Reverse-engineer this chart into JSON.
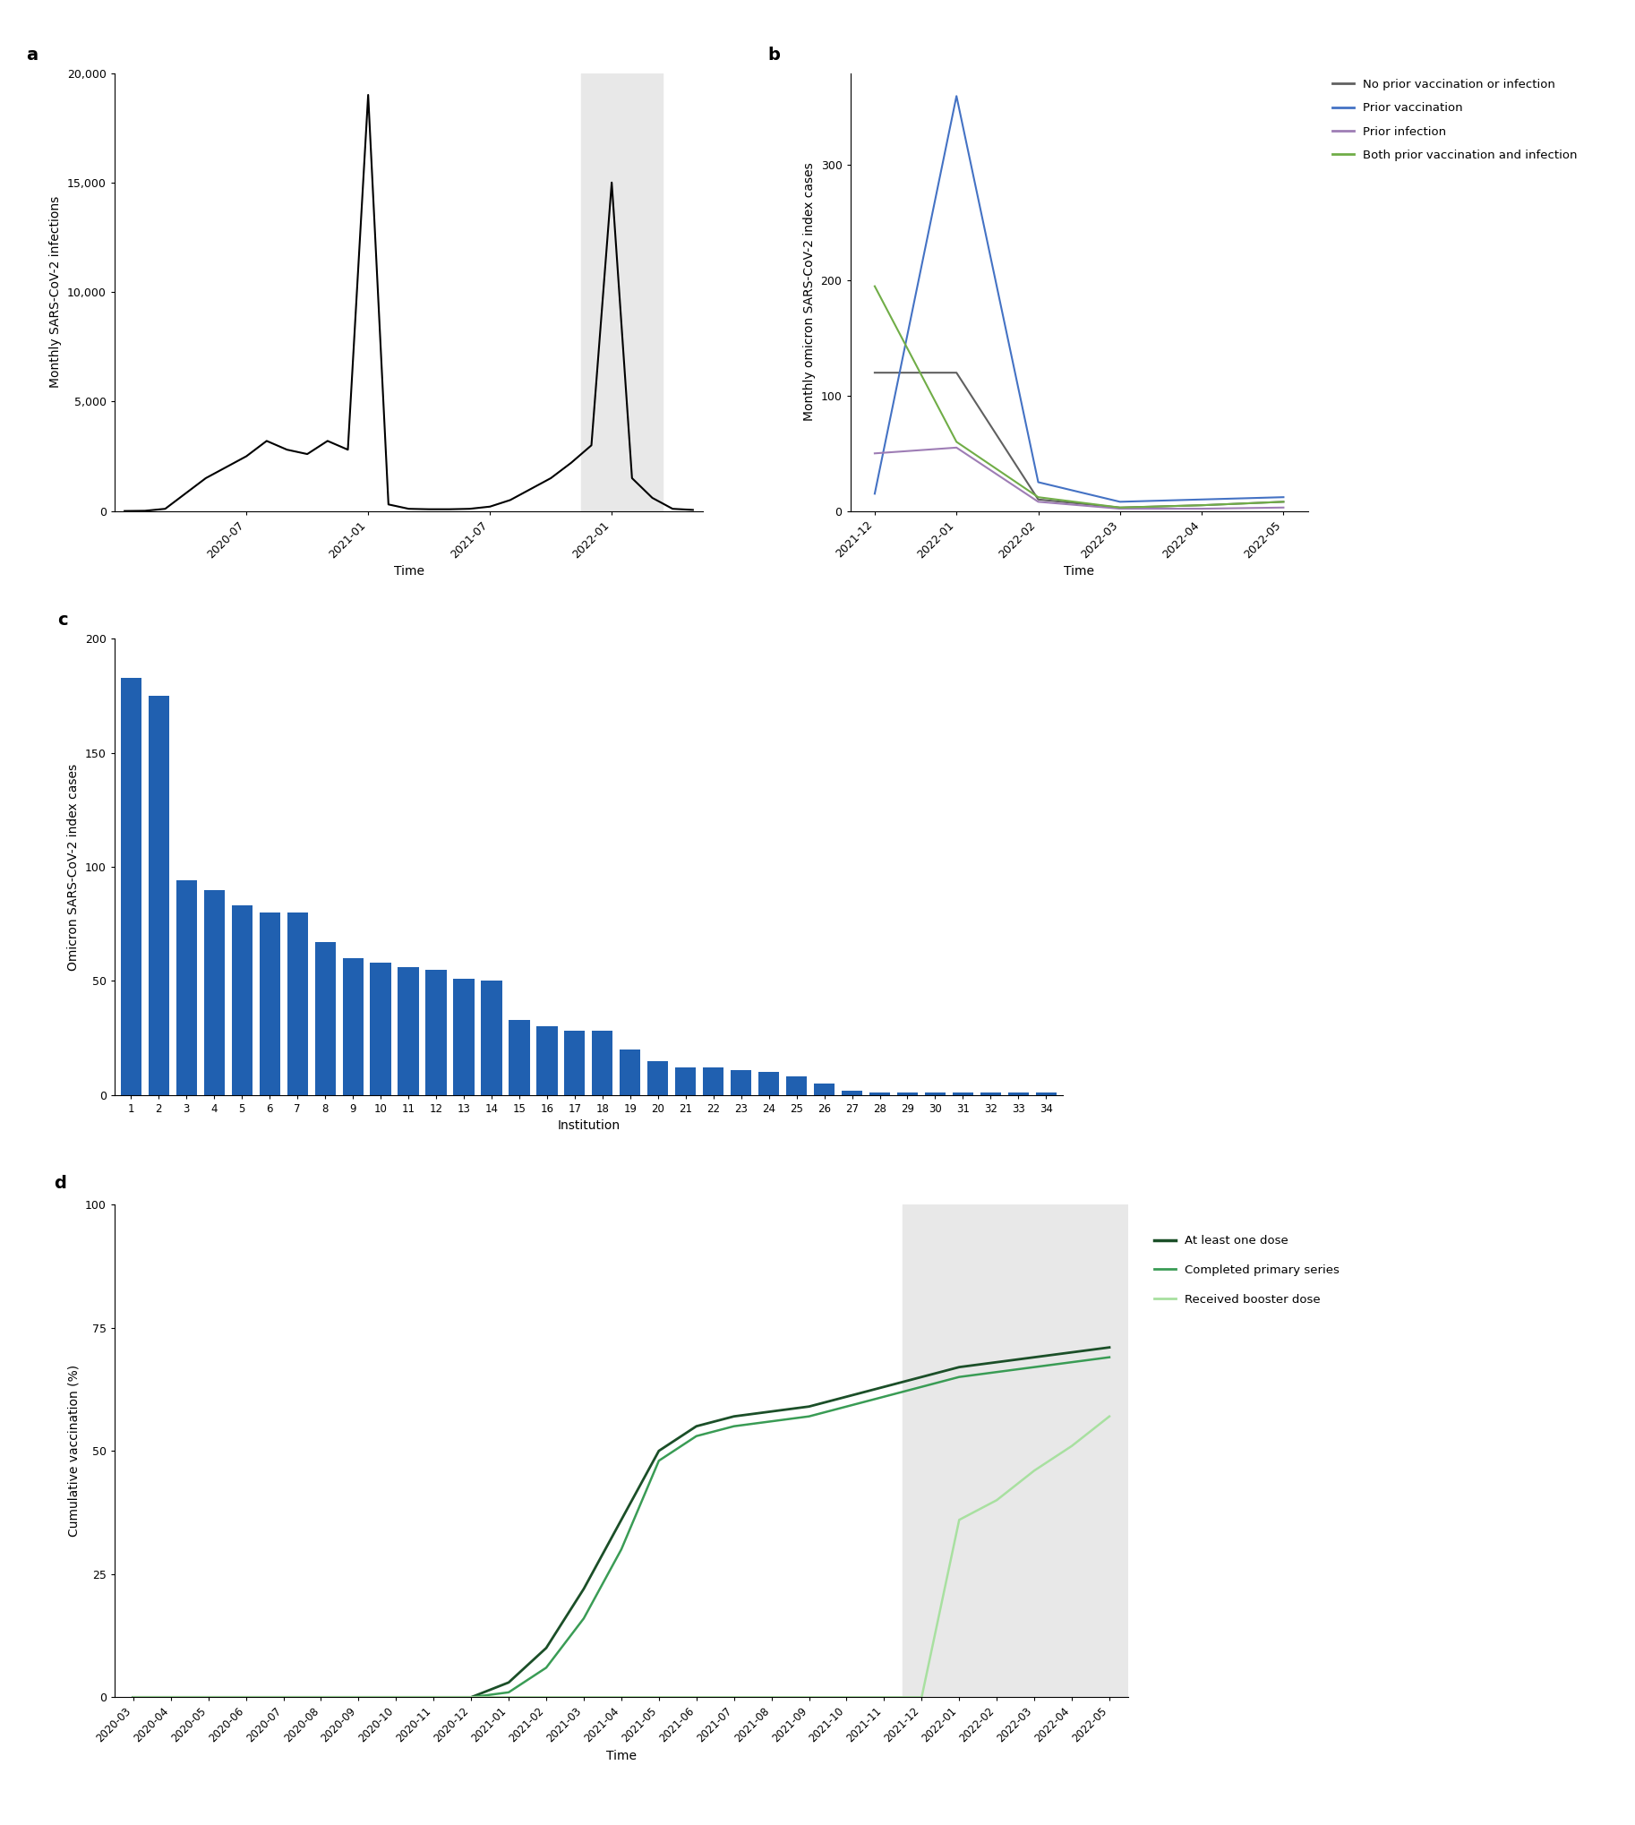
{
  "panel_a": {
    "times": [
      "2020-01",
      "2020-02",
      "2020-03",
      "2020-04",
      "2020-05",
      "2020-06",
      "2020-07",
      "2020-08",
      "2020-09",
      "2020-10",
      "2020-11",
      "2020-12",
      "2021-01",
      "2021-02",
      "2021-03",
      "2021-04",
      "2021-05",
      "2021-06",
      "2021-07",
      "2021-08",
      "2021-09",
      "2021-10",
      "2021-11",
      "2021-12",
      "2022-01",
      "2022-02",
      "2022-03",
      "2022-04",
      "2022-05"
    ],
    "values": [
      0,
      10,
      100,
      800,
      1500,
      2000,
      2500,
      3200,
      2800,
      2600,
      3200,
      2800,
      19000,
      300,
      100,
      80,
      80,
      100,
      200,
      500,
      1000,
      1500,
      2200,
      3000,
      15000,
      1500,
      600,
      100,
      50
    ],
    "ylabel": "Monthly SARS-CoV-2 infections",
    "xlabel": "Time",
    "ylim": [
      0,
      20000
    ],
    "yticks": [
      0,
      5000,
      10000,
      15000,
      20000
    ],
    "ytick_labels": [
      "0",
      "5,000",
      "10,000",
      "15,000",
      "20,000"
    ],
    "xtick_labels": [
      "2020-07",
      "2021-01",
      "2021-07",
      "2022-01"
    ],
    "gray_shade_start": "2021-12",
    "gray_shade_end": "2022-03"
  },
  "panel_b": {
    "times": [
      "2021-12",
      "2022-01",
      "2022-02",
      "2022-03",
      "2022-04",
      "2022-05"
    ],
    "no_prior": [
      120,
      120,
      10,
      3,
      5,
      8
    ],
    "prior_vacc": [
      15,
      360,
      25,
      8,
      10,
      12
    ],
    "prior_inf": [
      50,
      55,
      8,
      2,
      2,
      3
    ],
    "both": [
      195,
      60,
      12,
      3,
      5,
      8
    ],
    "ylabel": "Monthly omicron SARS-CoV-2 index cases",
    "xlabel": "Time",
    "ylim": [
      0,
      380
    ],
    "yticks": [
      0,
      100,
      200,
      300
    ],
    "ytick_labels": [
      "0",
      "100",
      "200",
      "300"
    ],
    "colors": {
      "no_prior": "#606060",
      "prior_vacc": "#4472C4",
      "prior_inf": "#9E7DB5",
      "both": "#70AD47"
    },
    "legend_labels": [
      "No prior vaccination or infection",
      "Prior vaccination",
      "Prior infection",
      "Both prior vaccination and infection"
    ]
  },
  "panel_c": {
    "institutions": [
      1,
      2,
      3,
      4,
      5,
      6,
      7,
      8,
      9,
      10,
      11,
      12,
      13,
      14,
      15,
      16,
      17,
      18,
      19,
      20,
      21,
      22,
      23,
      24,
      25,
      26,
      27,
      28,
      29,
      30,
      31,
      32,
      33,
      34
    ],
    "values": [
      183,
      175,
      94,
      90,
      83,
      80,
      80,
      67,
      60,
      58,
      56,
      55,
      51,
      50,
      33,
      30,
      28,
      28,
      20,
      15,
      12,
      12,
      11,
      10,
      8,
      5,
      2,
      1,
      1,
      1,
      1,
      1,
      1,
      1
    ],
    "bar_color": "#2060b0",
    "ylabel": "Omicron SARS-CoV-2 index cases",
    "xlabel": "Institution",
    "ylim": [
      0,
      200
    ],
    "yticks": [
      0,
      50,
      100,
      150,
      200
    ],
    "ytick_labels": [
      "0",
      "50",
      "100",
      "150",
      "200"
    ]
  },
  "panel_d": {
    "times": [
      "2020-03",
      "2020-04",
      "2020-05",
      "2020-06",
      "2020-07",
      "2020-08",
      "2020-09",
      "2020-10",
      "2020-11",
      "2020-12",
      "2021-01",
      "2021-02",
      "2021-03",
      "2021-04",
      "2021-05",
      "2021-06",
      "2021-07",
      "2021-08",
      "2021-09",
      "2021-10",
      "2021-11",
      "2021-12",
      "2022-01",
      "2022-02",
      "2022-03",
      "2022-04",
      "2022-05"
    ],
    "at_least_one": [
      0,
      0,
      0,
      0,
      0,
      0,
      0,
      0,
      0,
      0,
      3,
      10,
      22,
      36,
      50,
      55,
      57,
      58,
      59,
      61,
      63,
      65,
      67,
      68,
      69,
      70,
      71
    ],
    "completed_primary": [
      0,
      0,
      0,
      0,
      0,
      0,
      0,
      0,
      0,
      0,
      1,
      6,
      16,
      30,
      48,
      53,
      55,
      56,
      57,
      59,
      61,
      63,
      65,
      66,
      67,
      68,
      69
    ],
    "booster": [
      0,
      0,
      0,
      0,
      0,
      0,
      0,
      0,
      0,
      0,
      0,
      0,
      0,
      0,
      0,
      0,
      0,
      0,
      0,
      0,
      0,
      0,
      36,
      40,
      46,
      51,
      57
    ],
    "ylabel": "Cumulative vaccination (%)",
    "xlabel": "Time",
    "ylim": [
      0,
      100
    ],
    "yticks": [
      0,
      25,
      50,
      75,
      100
    ],
    "ytick_labels": [
      "0",
      "25",
      "50",
      "75",
      "100"
    ],
    "colors": {
      "at_least_one": "#1b4f28",
      "completed_primary": "#3a9c55",
      "booster": "#a8e0a0"
    },
    "legend_labels": [
      "At least one dose",
      "Completed primary series",
      "Received booster dose"
    ],
    "gray_shade_start": "2021-12",
    "gray_shade_end": "2022-05"
  }
}
